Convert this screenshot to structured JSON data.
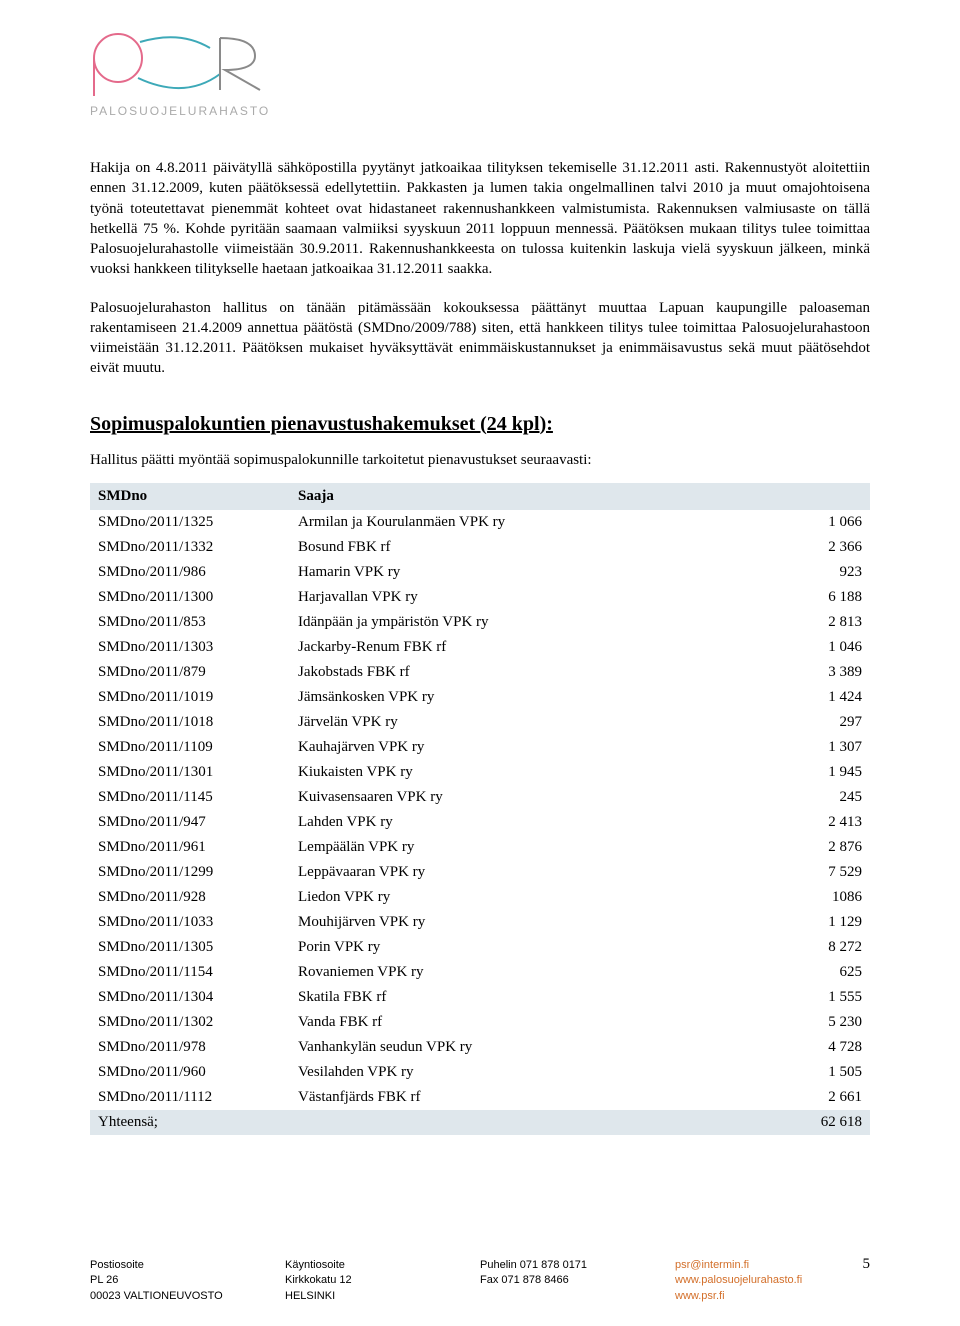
{
  "logo": {
    "subtext": "PALOSUOJELURAHASTO",
    "circle_color": "#e46a8b",
    "line_color": "#3da9b8",
    "r_color": "#8a8a8a"
  },
  "paragraphs": [
    "Hakija on 4.8.2011 päivätyllä sähköpostilla pyytänyt jatkoaikaa tilityksen tekemiselle 31.12.2011 asti. Rakennustyöt aloitettiin ennen 31.12.2009, kuten päätöksessä edellytettiin. Pakkasten ja lumen takia ongelmallinen talvi 2010 ja muut omajohtoisena työnä toteutettavat pienemmät kohteet ovat hidastaneet rakennushankkeen valmistumista. Rakennuksen valmiusaste on tällä hetkellä 75 %. Kohde pyritään saamaan valmiiksi syyskuun 2011 loppuun mennessä. Päätöksen mukaan tilitys tulee toimittaa Palosuojelurahastolle viimeistään 30.9.2011. Rakennushankkeesta on tulossa kuitenkin laskuja vielä syyskuun jälkeen, minkä vuoksi hankkeen tilitykselle haetaan jatkoaikaa 31.12.2011 saakka.",
    "Palosuojelurahaston hallitus on tänään pitämässään kokouksessa päättänyt muuttaa Lapuan kaupungille paloaseman rakentamiseen 21.4.2009 annettua päätöstä (SMDno/2009/788) siten, että hankkeen tilitys tulee toimittaa Palosuojelurahastoon viimeistään 31.12.2011. Päätöksen mukaiset hyväksyttävät enimmäiskustannukset ja enimmäisavustus sekä muut päätösehdot eivät muutu."
  ],
  "section_heading": "Sopimuspalokuntien pienavustushakemukset (24 kpl):",
  "table_intro": "Hallitus päätti myöntää sopimuspalokunnille tarkoitetut pienavustukset seuraavasti:",
  "table": {
    "headers": [
      "SMDno",
      "Saaja",
      ""
    ],
    "rows": [
      [
        "SMDno/2011/1325",
        "Armilan ja Kourulanmäen VPK ry",
        "1 066"
      ],
      [
        "SMDno/2011/1332",
        "Bosund FBK rf",
        "2 366"
      ],
      [
        "SMDno/2011/986",
        "Hamarin VPK ry",
        "923"
      ],
      [
        "SMDno/2011/1300",
        "Harjavallan VPK ry",
        "6 188"
      ],
      [
        "SMDno/2011/853",
        "Idänpään ja ympäristön VPK ry",
        "2 813"
      ],
      [
        "SMDno/2011/1303",
        "Jackarby-Renum FBK rf",
        "1 046"
      ],
      [
        "SMDno/2011/879",
        "Jakobstads FBK rf",
        "3 389"
      ],
      [
        "SMDno/2011/1019",
        "Jämsänkosken VPK ry",
        "1 424"
      ],
      [
        "SMDno/2011/1018",
        "Järvelän VPK ry",
        "297"
      ],
      [
        "SMDno/2011/1109",
        "Kauhajärven VPK ry",
        "1 307"
      ],
      [
        "SMDno/2011/1301",
        "Kiukaisten VPK ry",
        "1 945"
      ],
      [
        "SMDno/2011/1145",
        "Kuivasensaaren VPK ry",
        "245"
      ],
      [
        "SMDno/2011/947",
        "Lahden VPK ry",
        "2 413"
      ],
      [
        "SMDno/2011/961",
        "Lempäälän VPK ry",
        "2 876"
      ],
      [
        "SMDno/2011/1299",
        "Leppävaaran VPK ry",
        "7 529"
      ],
      [
        "SMDno/2011/928",
        "Liedon VPK ry",
        "1086"
      ],
      [
        "SMDno/2011/1033",
        "Mouhijärven VPK ry",
        "1 129"
      ],
      [
        "SMDno/2011/1305",
        "Porin VPK ry",
        "8 272"
      ],
      [
        "SMDno/2011/1154",
        "Rovaniemen VPK ry",
        "625"
      ],
      [
        "SMDno/2011/1304",
        "Skatila FBK rf",
        "1 555"
      ],
      [
        "SMDno/2011/1302",
        "Vanda FBK rf",
        "5 230"
      ],
      [
        "SMDno/2011/978",
        "Vanhankylän seudun VPK ry",
        "4 728"
      ],
      [
        "SMDno/2011/960",
        "Vesilahden VPK ry",
        "1 505"
      ],
      [
        "SMDno/2011/1112",
        "Västanfjärds FBK rf",
        "2 661"
      ]
    ],
    "total_label": "Yhteensä;",
    "total_value": "62 618"
  },
  "footer": {
    "col1": [
      "Postiosoite",
      "PL 26",
      "00023 VALTIONEUVOSTO"
    ],
    "col2": [
      "Käyntiosoite",
      "Kirkkokatu 12",
      "HELSINKI"
    ],
    "col3": [
      "Puhelin 071 878 0171",
      "Fax 071 878 8466"
    ],
    "col4": [
      "psr@intermin.fi",
      "www.palosuojelurahasto.fi",
      "www.psr.fi"
    ],
    "page_number": "5"
  }
}
